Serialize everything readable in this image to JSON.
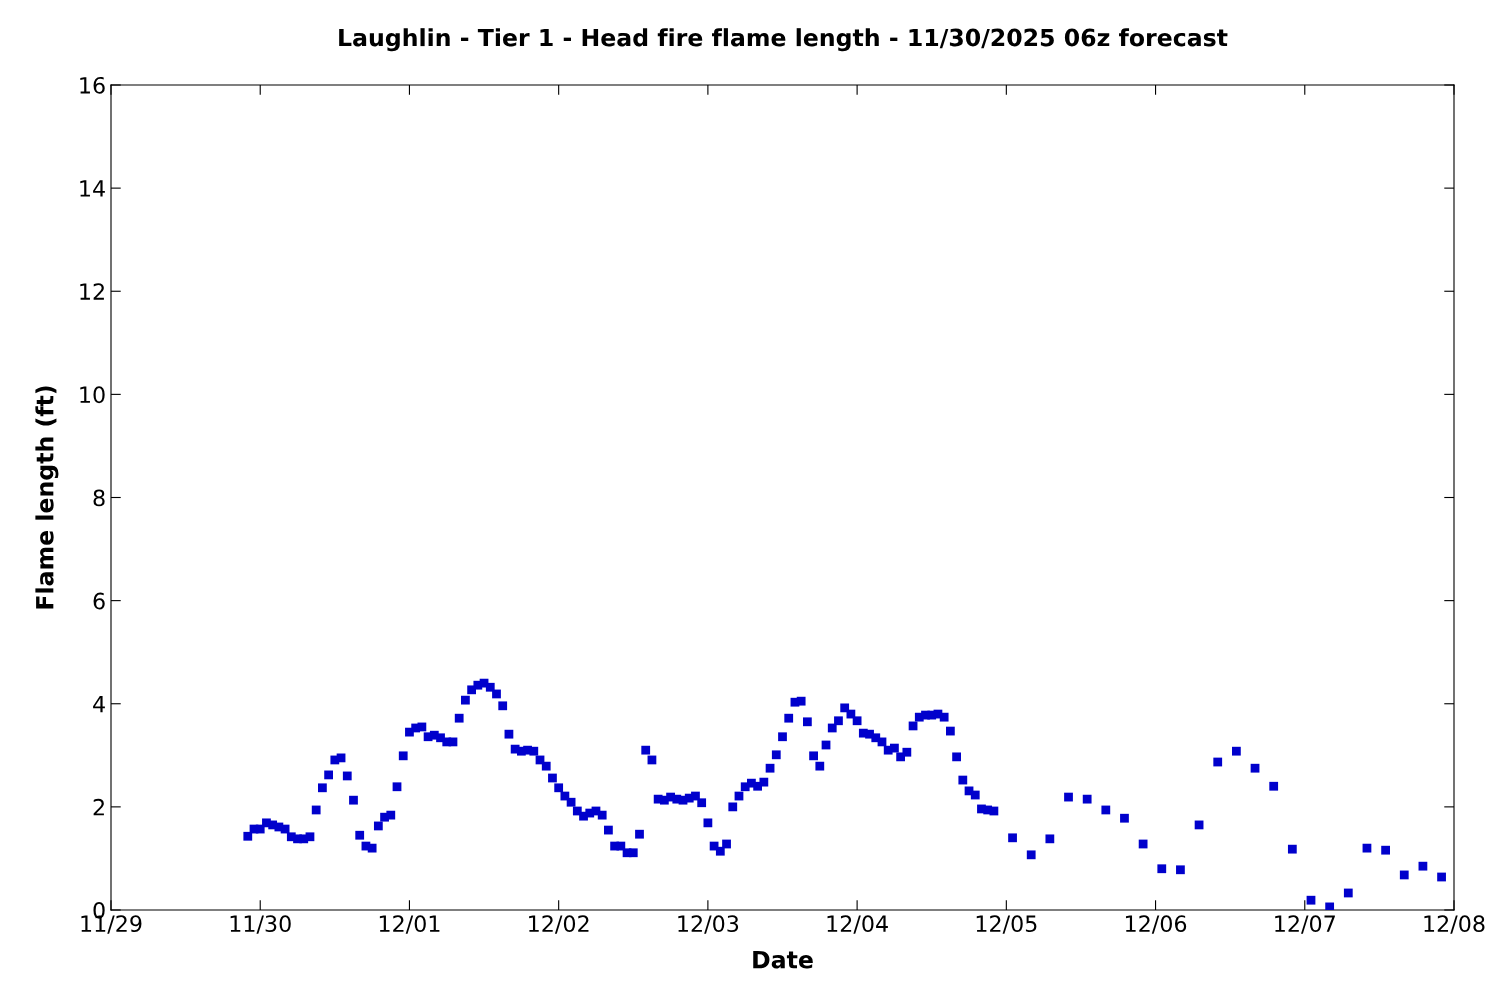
{
  "chart_data": {
    "type": "scatter",
    "title": "Laughlin - Tier 1 - Head fire flame length - 11/30/2025 06z forecast",
    "xlabel": "Date",
    "ylabel": "Flame length (ft)",
    "xlim": [
      "2025-11-29",
      "2025-12-08"
    ],
    "xticks": [
      {
        "value": "2025-11-29",
        "label": "11/29"
      },
      {
        "value": "2025-11-30",
        "label": "11/30"
      },
      {
        "value": "2025-12-01",
        "label": "12/01"
      },
      {
        "value": "2025-12-02",
        "label": "12/02"
      },
      {
        "value": "2025-12-03",
        "label": "12/03"
      },
      {
        "value": "2025-12-04",
        "label": "12/04"
      },
      {
        "value": "2025-12-05",
        "label": "12/05"
      },
      {
        "value": "2025-12-06",
        "label": "12/06"
      },
      {
        "value": "2025-12-07",
        "label": "12/07"
      },
      {
        "value": "2025-12-08",
        "label": "12/08"
      }
    ],
    "ylim": [
      0,
      16
    ],
    "yticks": [
      0,
      2,
      4,
      6,
      8,
      10,
      12,
      14,
      16
    ],
    "grid": false,
    "marker": "square",
    "series": [
      {
        "color": "#0000cc",
        "x": [
          "2025-11-29T22:00",
          "2025-11-29T23:00",
          "2025-11-30T00:00",
          "2025-11-30T01:00",
          "2025-11-30T02:00",
          "2025-11-30T03:00",
          "2025-11-30T04:00",
          "2025-11-30T05:00",
          "2025-11-30T06:00",
          "2025-11-30T07:00",
          "2025-11-30T08:00",
          "2025-11-30T09:00",
          "2025-11-30T10:00",
          "2025-11-30T11:00",
          "2025-11-30T12:00",
          "2025-11-30T13:00",
          "2025-11-30T14:00",
          "2025-11-30T15:00",
          "2025-11-30T16:00",
          "2025-11-30T17:00",
          "2025-11-30T18:00",
          "2025-11-30T19:00",
          "2025-11-30T20:00",
          "2025-11-30T21:00",
          "2025-11-30T22:00",
          "2025-11-30T23:00",
          "2025-12-01T00:00",
          "2025-12-01T01:00",
          "2025-12-01T02:00",
          "2025-12-01T03:00",
          "2025-12-01T04:00",
          "2025-12-01T05:00",
          "2025-12-01T06:00",
          "2025-12-01T07:00",
          "2025-12-01T08:00",
          "2025-12-01T09:00",
          "2025-12-01T10:00",
          "2025-12-01T11:00",
          "2025-12-01T12:00",
          "2025-12-01T13:00",
          "2025-12-01T14:00",
          "2025-12-01T15:00",
          "2025-12-01T16:00",
          "2025-12-01T17:00",
          "2025-12-01T18:00",
          "2025-12-01T19:00",
          "2025-12-01T20:00",
          "2025-12-01T21:00",
          "2025-12-01T22:00",
          "2025-12-01T23:00",
          "2025-12-02T00:00",
          "2025-12-02T01:00",
          "2025-12-02T02:00",
          "2025-12-02T03:00",
          "2025-12-02T04:00",
          "2025-12-02T05:00",
          "2025-12-02T06:00",
          "2025-12-02T07:00",
          "2025-12-02T08:00",
          "2025-12-02T09:00",
          "2025-12-02T10:00",
          "2025-12-02T11:00",
          "2025-12-02T12:00",
          "2025-12-02T13:00",
          "2025-12-02T14:00",
          "2025-12-02T15:00",
          "2025-12-02T16:00",
          "2025-12-02T17:00",
          "2025-12-02T18:00",
          "2025-12-02T19:00",
          "2025-12-02T20:00",
          "2025-12-02T21:00",
          "2025-12-02T22:00",
          "2025-12-02T23:00",
          "2025-12-03T00:00",
          "2025-12-03T01:00",
          "2025-12-03T02:00",
          "2025-12-03T03:00",
          "2025-12-03T04:00",
          "2025-12-03T05:00",
          "2025-12-03T06:00",
          "2025-12-03T07:00",
          "2025-12-03T08:00",
          "2025-12-03T09:00",
          "2025-12-03T10:00",
          "2025-12-03T11:00",
          "2025-12-03T12:00",
          "2025-12-03T13:00",
          "2025-12-03T14:00",
          "2025-12-03T15:00",
          "2025-12-03T16:00",
          "2025-12-03T17:00",
          "2025-12-03T18:00",
          "2025-12-03T19:00",
          "2025-12-03T20:00",
          "2025-12-03T21:00",
          "2025-12-03T22:00",
          "2025-12-03T23:00",
          "2025-12-04T00:00",
          "2025-12-04T01:00",
          "2025-12-04T02:00",
          "2025-12-04T03:00",
          "2025-12-04T04:00",
          "2025-12-04T05:00",
          "2025-12-04T06:00",
          "2025-12-04T07:00",
          "2025-12-04T08:00",
          "2025-12-04T09:00",
          "2025-12-04T10:00",
          "2025-12-04T11:00",
          "2025-12-04T12:00",
          "2025-12-04T13:00",
          "2025-12-04T14:00",
          "2025-12-04T15:00",
          "2025-12-04T16:00",
          "2025-12-04T17:00",
          "2025-12-04T18:00",
          "2025-12-04T19:00",
          "2025-12-04T20:00",
          "2025-12-04T21:00",
          "2025-12-04T22:00",
          "2025-12-05T01:00",
          "2025-12-05T04:00",
          "2025-12-05T07:00",
          "2025-12-05T10:00",
          "2025-12-05T13:00",
          "2025-12-05T16:00",
          "2025-12-05T19:00",
          "2025-12-05T22:00",
          "2025-12-06T01:00",
          "2025-12-06T04:00",
          "2025-12-06T07:00",
          "2025-12-06T10:00",
          "2025-12-06T13:00",
          "2025-12-06T16:00",
          "2025-12-06T19:00",
          "2025-12-06T22:00",
          "2025-12-07T01:00",
          "2025-12-07T04:00",
          "2025-12-07T07:00",
          "2025-12-07T10:00",
          "2025-12-07T13:00",
          "2025-12-07T16:00",
          "2025-12-07T19:00",
          "2025-12-07T22:00"
        ],
        "values": [
          1.43,
          1.57,
          1.57,
          1.69,
          1.65,
          1.61,
          1.57,
          1.42,
          1.38,
          1.38,
          1.42,
          1.94,
          2.37,
          2.62,
          2.91,
          2.95,
          2.6,
          2.13,
          1.45,
          1.24,
          1.2,
          1.63,
          1.8,
          1.84,
          2.39,
          2.99,
          3.45,
          3.53,
          3.55,
          3.36,
          3.39,
          3.34,
          3.26,
          3.26,
          3.72,
          4.07,
          4.27,
          4.36,
          4.4,
          4.32,
          4.19,
          3.96,
          3.41,
          3.12,
          3.08,
          3.1,
          3.08,
          2.91,
          2.79,
          2.56,
          2.37,
          2.21,
          2.09,
          1.92,
          1.82,
          1.88,
          1.92,
          1.84,
          1.55,
          1.24,
          1.24,
          1.11,
          1.11,
          1.47,
          3.1,
          2.91,
          2.15,
          2.13,
          2.19,
          2.15,
          2.13,
          2.17,
          2.21,
          2.08,
          1.69,
          1.24,
          1.14,
          1.28,
          2.0,
          2.21,
          2.39,
          2.46,
          2.4,
          2.48,
          2.75,
          3.01,
          3.36,
          3.72,
          4.03,
          4.05,
          3.65,
          2.99,
          2.79,
          3.2,
          3.53,
          3.67,
          3.92,
          3.8,
          3.67,
          3.43,
          3.41,
          3.34,
          3.26,
          3.1,
          3.14,
          2.97,
          3.06,
          3.57,
          3.74,
          3.78,
          3.78,
          3.8,
          3.74,
          3.47,
          2.97,
          2.52,
          2.31,
          2.23,
          1.96,
          1.94,
          1.92,
          1.4,
          1.07,
          1.38,
          2.19,
          2.15,
          1.94,
          1.78,
          1.28,
          0.8,
          0.78,
          1.65,
          2.87,
          3.08,
          2.75,
          2.4,
          1.18,
          0.19,
          0.06,
          0.33,
          1.2,
          1.16,
          0.68,
          0.85,
          0.64
        ]
      }
    ]
  }
}
